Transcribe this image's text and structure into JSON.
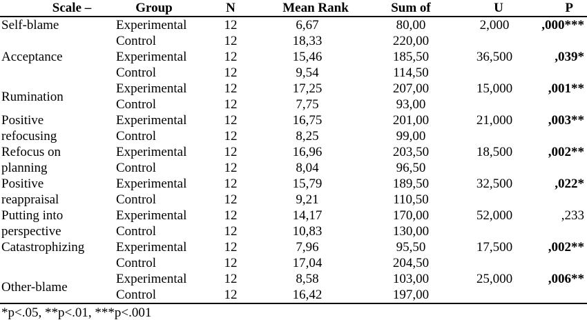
{
  "page": {
    "background_color": "#ffffff",
    "text_color": "#000000"
  },
  "table": {
    "columns": [
      "Scale –",
      "Group",
      "N",
      "Mean Rank",
      "Sum of",
      "U",
      "P"
    ],
    "footnote": "*p<.05, **p<.01, ***p<.001",
    "scales": [
      {
        "name": "Self-blame",
        "valign": "top",
        "rows": [
          {
            "group": "Experimental",
            "n": "12",
            "mean_rank": "6,67",
            "sum_of": "80,00",
            "u": "2,000",
            "p": ",000***",
            "p_bold": true
          },
          {
            "group": "Control",
            "n": "12",
            "mean_rank": "18,33",
            "sum_of": "220,00",
            "u": "",
            "p": "",
            "p_bold": false
          }
        ]
      },
      {
        "name": "Acceptance",
        "valign": "top",
        "rows": [
          {
            "group": "Experimental",
            "n": "12",
            "mean_rank": "15,46",
            "sum_of": "185,50",
            "u": "36,500",
            "p": ",039*",
            "p_bold": true
          },
          {
            "group": "Control",
            "n": "12",
            "mean_rank": "9,54",
            "sum_of": "114,50",
            "u": "",
            "p": "",
            "p_bold": false
          }
        ]
      },
      {
        "name": "Rumination",
        "valign": "middle",
        "rows": [
          {
            "group": "Experimental",
            "n": "12",
            "mean_rank": "17,25",
            "sum_of": "207,00",
            "u": "15,000",
            "p": ",001**",
            "p_bold": true
          },
          {
            "group": "Control",
            "n": "12",
            "mean_rank": "7,75",
            "sum_of": "93,00",
            "u": "",
            "p": "",
            "p_bold": false
          }
        ]
      },
      {
        "name": "Positive\nrefocusing",
        "valign": "top",
        "rows": [
          {
            "group": "Experimental",
            "n": "12",
            "mean_rank": "16,75",
            "sum_of": "201,00",
            "u": "21,000",
            "p": ",003**",
            "p_bold": true
          },
          {
            "group": "Control",
            "n": "12",
            "mean_rank": "8,25",
            "sum_of": "99,00",
            "u": "",
            "p": "",
            "p_bold": false
          }
        ]
      },
      {
        "name": "Refocus on\nplanning",
        "valign": "top",
        "rows": [
          {
            "group": "Experimental",
            "n": "12",
            "mean_rank": "16,96",
            "sum_of": "203,50",
            "u": "18,500",
            "p": ",002**",
            "p_bold": true
          },
          {
            "group": "Control",
            "n": "12",
            "mean_rank": "8,04",
            "sum_of": "96,50",
            "u": "",
            "p": "",
            "p_bold": false
          }
        ]
      },
      {
        "name": "Positive\nreappraisal",
        "valign": "top",
        "rows": [
          {
            "group": "Experimental",
            "n": "12",
            "mean_rank": "15,79",
            "sum_of": "189,50",
            "u": "32,500",
            "p": ",022*",
            "p_bold": true
          },
          {
            "group": "Control",
            "n": "12",
            "mean_rank": "9,21",
            "sum_of": "110,50",
            "u": "",
            "p": "",
            "p_bold": false
          }
        ]
      },
      {
        "name": "Putting into\nperspective",
        "valign": "top",
        "rows": [
          {
            "group": "Experimental",
            "n": "12",
            "mean_rank": "14,17",
            "sum_of": "170,00",
            "u": "52,000",
            "p": ",233",
            "p_bold": false
          },
          {
            "group": "Control",
            "n": "12",
            "mean_rank": "10,83",
            "sum_of": "130,00",
            "u": "",
            "p": "",
            "p_bold": false
          }
        ]
      },
      {
        "name": "Catastrophizing",
        "valign": "top",
        "rows": [
          {
            "group": "Experimental",
            "n": "12",
            "mean_rank": "7,96",
            "sum_of": "95,50",
            "u": "17,500",
            "p": ",002**",
            "p_bold": true
          },
          {
            "group": "Control",
            "n": "12",
            "mean_rank": "17,04",
            "sum_of": "204,50",
            "u": "",
            "p": "",
            "p_bold": false
          }
        ]
      },
      {
        "name": "Other-blame",
        "valign": "middle",
        "rows": [
          {
            "group": "Experimental",
            "n": "12",
            "mean_rank": "8,58",
            "sum_of": "103,00",
            "u": "25,000",
            "p": ",006**",
            "p_bold": true
          },
          {
            "group": "Control",
            "n": "12",
            "mean_rank": "16,42",
            "sum_of": "197,00",
            "u": "",
            "p": "",
            "p_bold": false
          }
        ]
      }
    ]
  }
}
